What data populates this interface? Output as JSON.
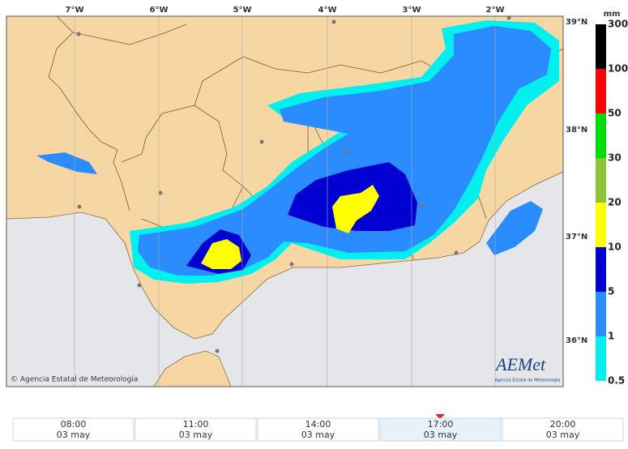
{
  "map": {
    "longitudes": [
      "7°W",
      "6°W",
      "5°W",
      "4°W",
      "3°W",
      "2°W"
    ],
    "latitudes": [
      "39°N",
      "38°N",
      "37°N",
      "36°N"
    ],
    "copyright": "© Agencia Estatal de Meteorología",
    "logo": {
      "name": "AEMet",
      "subtitle": "Agencia Estatal de Meteorología"
    }
  },
  "legend": {
    "unit": "mm",
    "items": [
      {
        "label": "300",
        "color": "#000000"
      },
      {
        "label": "100",
        "color": "#ff0000"
      },
      {
        "label": "50",
        "color": "#00dd00"
      },
      {
        "label": "30",
        "color": "#8cc43c"
      },
      {
        "label": "20",
        "color": "#ffff00"
      },
      {
        "label": "10",
        "color": "#0000d2"
      },
      {
        "label": "5",
        "color": "#2a8cff"
      },
      {
        "label": "1",
        "color": "#00f0f0"
      },
      {
        "label": "0.5",
        "color": null
      }
    ]
  },
  "timeline": [
    {
      "time": "08:00",
      "date": "03 may"
    },
    {
      "time": "11:00",
      "date": "03 may"
    },
    {
      "time": "14:00",
      "date": "03 may"
    },
    {
      "time": "17:00",
      "date": "03 may",
      "selected": true
    },
    {
      "time": "20:00",
      "date": "03 may"
    }
  ]
}
